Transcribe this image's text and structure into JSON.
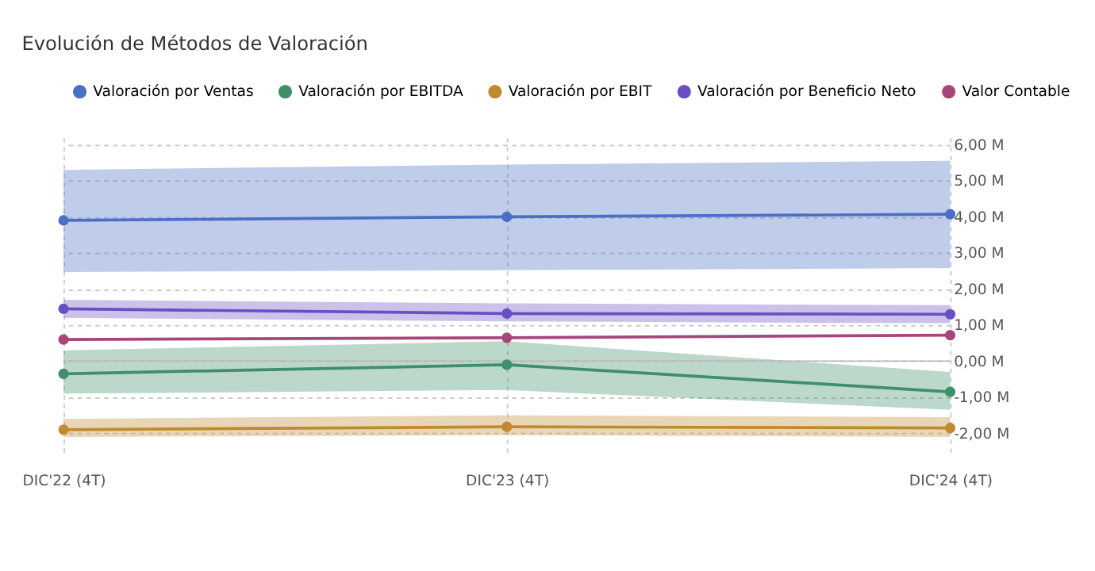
{
  "chart_data": {
    "type": "line",
    "title": "Evolución de Métodos de Valoración",
    "categories": [
      "DIC'22 (4T)",
      "DIC'23 (4T)",
      "DIC'24 (4T)"
    ],
    "series": [
      {
        "name": "Valoración por Ventas",
        "color": "#4a6fc4",
        "values": [
          3.9,
          4.0,
          4.07
        ],
        "lower": [
          2.47,
          2.52,
          2.58
        ],
        "upper": [
          5.3,
          5.45,
          5.55
        ]
      },
      {
        "name": "Valoración por EBITDA",
        "color": "#3f8f6a",
        "values": [
          -0.35,
          -0.1,
          -0.85
        ],
        "lower": [
          -0.9,
          -0.8,
          -1.35
        ],
        "upper": [
          0.3,
          0.55,
          -0.3
        ]
      },
      {
        "name": "Valoración por EBIT",
        "color": "#c08a2e",
        "values": [
          -1.9,
          -1.82,
          -1.85
        ],
        "lower": [
          -2.1,
          -2.05,
          -2.1
        ],
        "upper": [
          -1.6,
          -1.5,
          -1.55
        ]
      },
      {
        "name": "Valoración por Beneficio Neto",
        "color": "#6a4fc4",
        "values": [
          1.45,
          1.32,
          1.3
        ],
        "lower": [
          1.2,
          1.1,
          1.05
        ],
        "upper": [
          1.7,
          1.6,
          1.55
        ]
      },
      {
        "name": "Valor Contable",
        "color": "#a8457a",
        "values": [
          0.6,
          0.65,
          0.72
        ]
      }
    ],
    "ylim": [
      -2.6,
      6.2
    ],
    "yticks": [
      {
        "value": 6,
        "label": "6,00 M"
      },
      {
        "value": 5,
        "label": "5,00 M"
      },
      {
        "value": 4,
        "label": "4,00 M"
      },
      {
        "value": 3,
        "label": "3,00 M"
      },
      {
        "value": 2,
        "label": "2,00 M"
      },
      {
        "value": 1,
        "label": "1,00 M"
      },
      {
        "value": 0,
        "label": "0,00 M"
      },
      {
        "value": -1,
        "label": "-1,00 M"
      },
      {
        "value": -2,
        "label": "-2,00 M"
      }
    ],
    "ref_lines": [
      {
        "axis": "y",
        "value": 0,
        "color": "#bbbbbb"
      }
    ],
    "grid": true,
    "legend": "top",
    "marker": "circle",
    "line_style": "solid"
  }
}
